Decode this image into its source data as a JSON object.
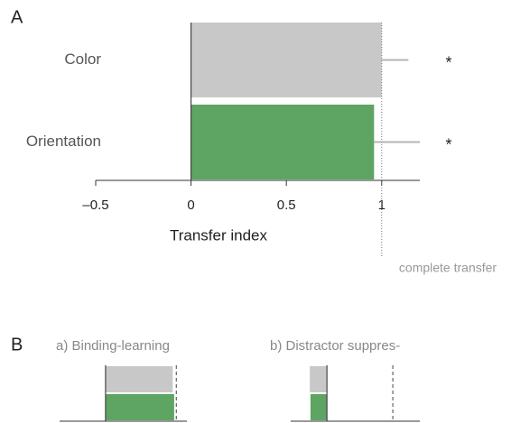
{
  "chart_data": [
    {
      "type": "bar",
      "orientation": "horizontal",
      "panel_label": "A",
      "categories": [
        "Color",
        "Orientation"
      ],
      "values": [
        1.0,
        0.96
      ],
      "errors": [
        0.14,
        0.24
      ],
      "colors": [
        "#c8c8c8",
        "#5ea463"
      ],
      "annotations": [
        "*",
        "*"
      ],
      "xlim": [
        -0.5,
        1.2
      ],
      "xticks": [
        {
          "value": -0.5,
          "label": "–0.5"
        },
        0,
        0.5,
        1
      ],
      "xlabel": "Transfer index",
      "reference_line": {
        "value": 1,
        "label": "complete transfer"
      }
    },
    {
      "type": "bar",
      "orientation": "horizontal",
      "panel_label": "B",
      "title": "a) Binding-learning",
      "categories": [
        null,
        null
      ],
      "values": [
        0.95,
        0.97
      ],
      "colors": [
        "#c8c8c8",
        "#5ea463"
      ],
      "xlim": [
        -0.65,
        1.15
      ],
      "reference_line": {
        "value": 1
      }
    },
    {
      "type": "bar",
      "orientation": "horizontal",
      "title": "b) Distractor suppres-",
      "categories": [
        null,
        null
      ],
      "values": [
        -0.26,
        -0.25
      ],
      "colors": [
        "#c8c8c8",
        "#5ea463"
      ],
      "xlim": [
        -0.55,
        1.41
      ],
      "reference_line": {
        "value": 1
      }
    }
  ]
}
